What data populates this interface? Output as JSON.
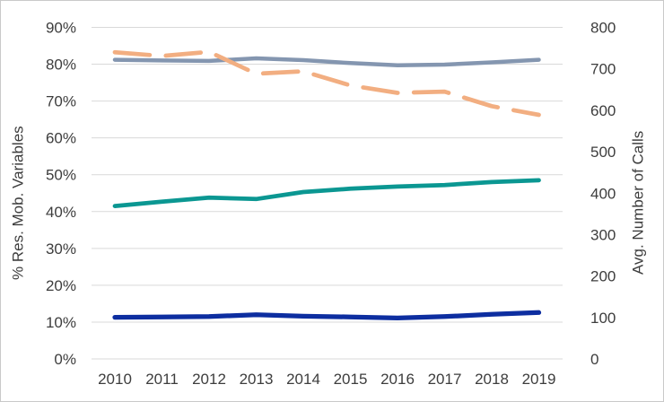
{
  "chart_data": {
    "type": "line",
    "title": "",
    "categories": [
      "2010",
      "2011",
      "2012",
      "2013",
      "2014",
      "2015",
      "2016",
      "2017",
      "2018",
      "2019"
    ],
    "axes": {
      "left": {
        "label": "% Res. Mob. Variables",
        "min": 0,
        "max": 90,
        "step": 10,
        "tick_labels": [
          "0%",
          "10%",
          "20%",
          "30%",
          "40%",
          "50%",
          "60%",
          "70%",
          "80%",
          "90%"
        ]
      },
      "right": {
        "label": "Avg. Number of Calls",
        "min": 0,
        "max": 800,
        "step": 100,
        "tick_labels": [
          "0",
          "100",
          "200",
          "300",
          "400",
          "500",
          "600",
          "700",
          "800"
        ]
      }
    },
    "grid": "horizontal",
    "gridline_color": "#d9d9d9",
    "legend": "none",
    "series": [
      {
        "name": "blue-gray-solid",
        "axis": "left",
        "line_style": "solid",
        "color": "#8496B0",
        "values": [
          81.2,
          81.0,
          80.9,
          81.6,
          81.1,
          80.3,
          79.7,
          79.9,
          80.5,
          81.2
        ]
      },
      {
        "name": "orange-dashed",
        "axis": "right",
        "line_style": "dashed",
        "color": "#F2AE81",
        "values": [
          740,
          731,
          741,
          688,
          694,
          660,
          642,
          645,
          610,
          589
        ]
      },
      {
        "name": "teal-solid",
        "axis": "left",
        "line_style": "solid",
        "color": "#0B9792",
        "values": [
          41.5,
          42.7,
          43.8,
          43.4,
          45.3,
          46.2,
          46.8,
          47.2,
          48.0,
          48.5
        ]
      },
      {
        "name": "navy-solid",
        "axis": "left",
        "line_style": "solid",
        "color": "#0D2EA0",
        "values": [
          11.3,
          11.4,
          11.5,
          12.0,
          11.6,
          11.4,
          11.1,
          11.5,
          12.1,
          12.6
        ]
      }
    ]
  }
}
